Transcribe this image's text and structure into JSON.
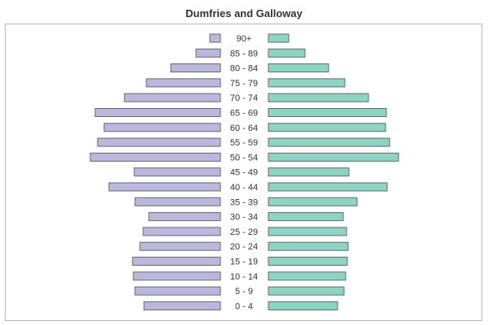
{
  "chart_data": {
    "type": "bar",
    "title": "Dumfries and Galloway",
    "orientation": "horizontal-population-pyramid",
    "categories": [
      "90+",
      "85 - 89",
      "80 - 84",
      "75 - 79",
      "70 - 74",
      "65 - 69",
      "60 - 64",
      "55 - 59",
      "50 - 54",
      "45 - 49",
      "40 - 44",
      "35 - 39",
      "30 - 34",
      "25 - 29",
      "20 - 24",
      "15 - 19",
      "10 - 14",
      "5 - 9",
      "0 - 4"
    ],
    "series": [
      {
        "side": "left",
        "color": "#bcb7dd",
        "values": [
          13,
          30,
          61,
          91,
          118,
          154,
          143,
          151,
          160,
          106,
          137,
          105,
          88,
          95,
          99,
          108,
          107,
          105,
          94
        ]
      },
      {
        "side": "right",
        "color": "#8fd3c2",
        "values": [
          25,
          45,
          74,
          94,
          123,
          145,
          144,
          149,
          160,
          99,
          146,
          109,
          92,
          96,
          98,
          97,
          95,
          93,
          85
        ]
      }
    ],
    "xlim": [
      0,
      160
    ],
    "axes_visible": false,
    "grid": false,
    "legend": "none",
    "border_color": "#5f6b6a"
  }
}
